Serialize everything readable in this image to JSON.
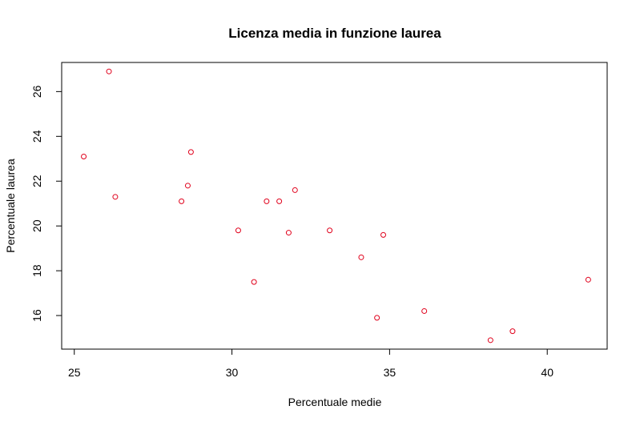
{
  "chart_data": {
    "type": "scatter",
    "title": "Licenza media in funzione laurea",
    "xlabel": "Percentuale medie",
    "ylabel": "Percentuale laurea",
    "xlim": [
      24.6,
      41.9
    ],
    "ylim": [
      14.5,
      27.3
    ],
    "xticks": [
      25,
      30,
      35,
      40
    ],
    "yticks": [
      16,
      18,
      20,
      22,
      24,
      26
    ],
    "grid": false,
    "marker_color": "#e0001b",
    "points": [
      {
        "x": 25.3,
        "y": 23.1
      },
      {
        "x": 26.1,
        "y": 26.9
      },
      {
        "x": 26.3,
        "y": 21.3
      },
      {
        "x": 28.4,
        "y": 21.1
      },
      {
        "x": 28.6,
        "y": 21.8
      },
      {
        "x": 28.7,
        "y": 23.3
      },
      {
        "x": 30.2,
        "y": 19.8
      },
      {
        "x": 30.7,
        "y": 17.5
      },
      {
        "x": 31.1,
        "y": 21.1
      },
      {
        "x": 31.5,
        "y": 21.1
      },
      {
        "x": 31.8,
        "y": 19.7
      },
      {
        "x": 32.0,
        "y": 21.6
      },
      {
        "x": 33.1,
        "y": 19.8
      },
      {
        "x": 34.1,
        "y": 18.6
      },
      {
        "x": 34.6,
        "y": 15.9
      },
      {
        "x": 34.8,
        "y": 19.6
      },
      {
        "x": 36.1,
        "y": 16.2
      },
      {
        "x": 38.2,
        "y": 14.9
      },
      {
        "x": 38.9,
        "y": 15.3
      },
      {
        "x": 41.3,
        "y": 17.6
      }
    ]
  }
}
